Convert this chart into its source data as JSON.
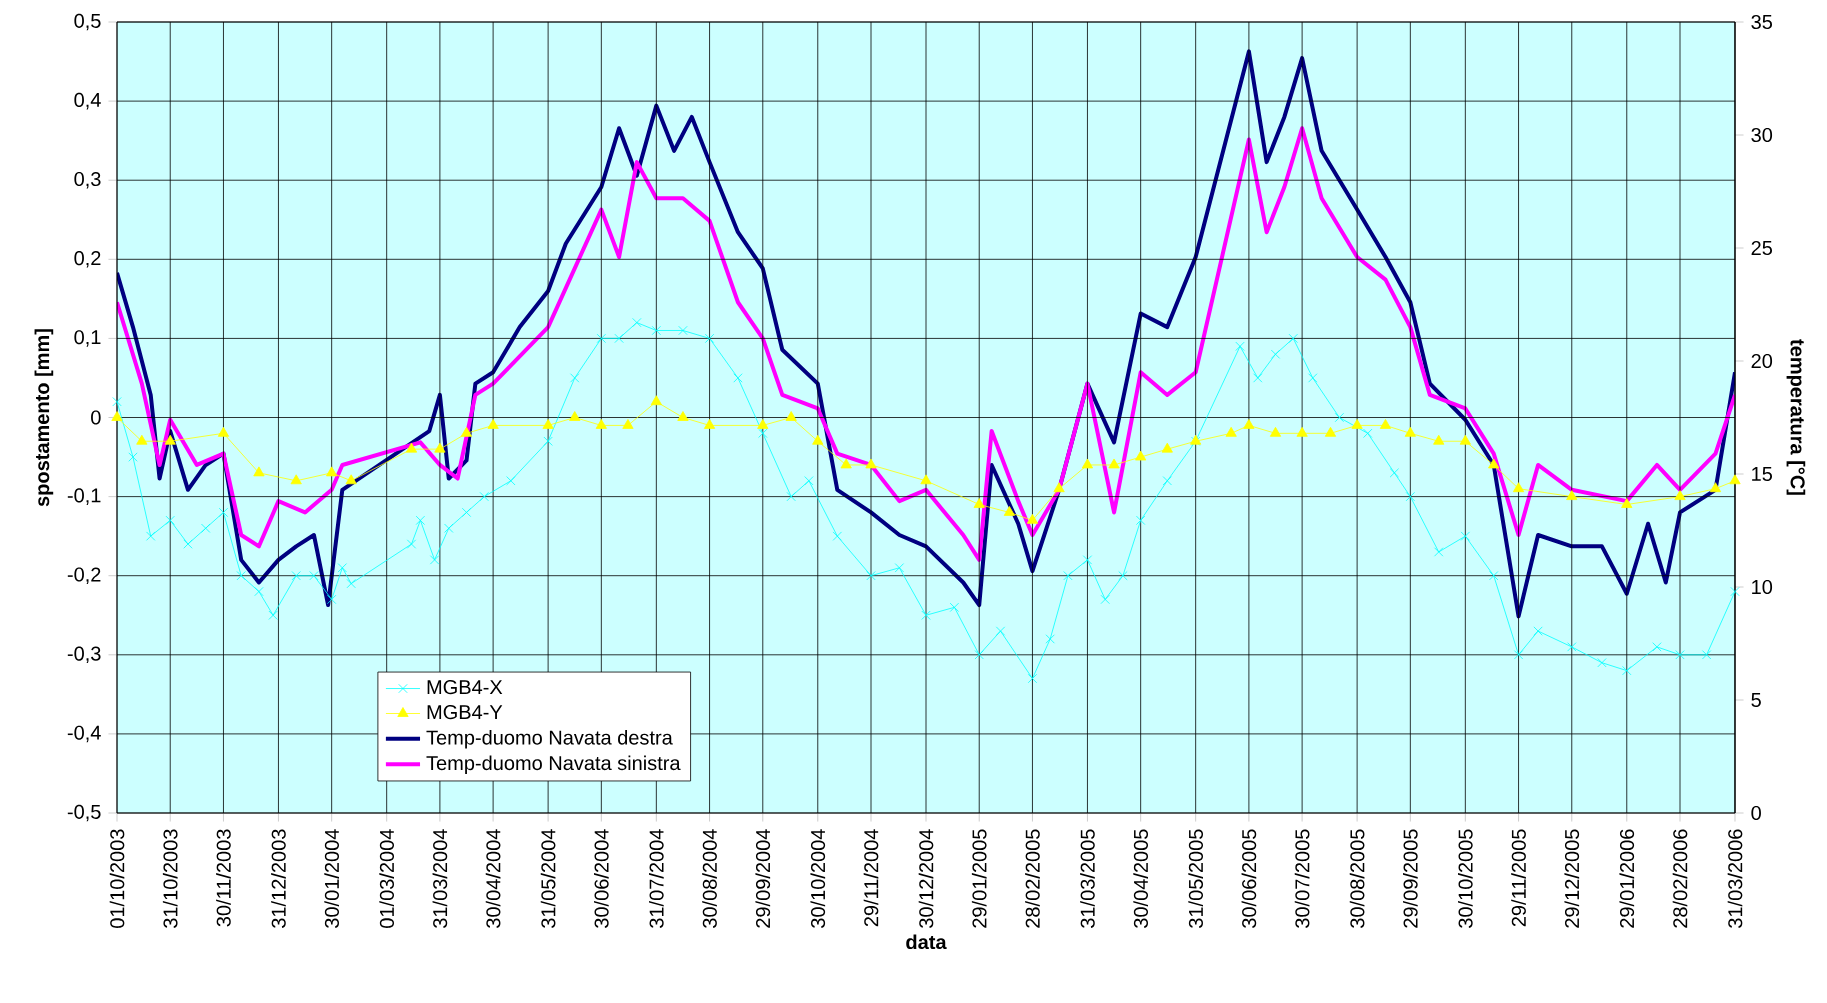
{
  "chart_data": {
    "type": "line",
    "xlabel": "data",
    "ylabel": "spostamento [mm]",
    "y2label": "temperatura [°C]",
    "xlim": [
      "2003-10-01",
      "2006-03-31"
    ],
    "xticks": [
      {
        "value": "2003-10-01",
        "label": "01/10/2003"
      },
      {
        "value": "2003-10-31",
        "label": "31/10/2003"
      },
      {
        "value": "2003-11-30",
        "label": "30/11/2003"
      },
      {
        "value": "2003-12-31",
        "label": "31/12/2003"
      },
      {
        "value": "2004-01-30",
        "label": "30/01/2004"
      },
      {
        "value": "2004-03-01",
        "label": "01/03/2004"
      },
      {
        "value": "2004-03-31",
        "label": "31/03/2004"
      },
      {
        "value": "2004-04-30",
        "label": "30/04/2004"
      },
      {
        "value": "2004-05-31",
        "label": "31/05/2004"
      },
      {
        "value": "2004-06-30",
        "label": "30/06/2004"
      },
      {
        "value": "2004-07-31",
        "label": "31/07/2004"
      },
      {
        "value": "2004-08-30",
        "label": "30/08/2004"
      },
      {
        "value": "2004-09-29",
        "label": "29/09/2004"
      },
      {
        "value": "2004-10-30",
        "label": "30/10/2004"
      },
      {
        "value": "2004-11-29",
        "label": "29/11/2004"
      },
      {
        "value": "2004-12-30",
        "label": "30/12/2004"
      },
      {
        "value": "2005-01-29",
        "label": "29/01/2005"
      },
      {
        "value": "2005-02-28",
        "label": "28/02/2005"
      },
      {
        "value": "2005-03-31",
        "label": "31/03/2005"
      },
      {
        "value": "2005-04-30",
        "label": "30/04/2005"
      },
      {
        "value": "2005-05-31",
        "label": "31/05/2005"
      },
      {
        "value": "2005-06-30",
        "label": "30/06/2005"
      },
      {
        "value": "2005-07-30",
        "label": "30/07/2005"
      },
      {
        "value": "2005-08-30",
        "label": "30/08/2005"
      },
      {
        "value": "2005-09-29",
        "label": "29/09/2005"
      },
      {
        "value": "2005-10-30",
        "label": "30/10/2005"
      },
      {
        "value": "2005-11-29",
        "label": "29/11/2005"
      },
      {
        "value": "2005-12-29",
        "label": "29/12/2005"
      },
      {
        "value": "2006-01-29",
        "label": "29/01/2006"
      },
      {
        "value": "2006-02-28",
        "label": "28/02/2006"
      },
      {
        "value": "2006-03-31",
        "label": "31/03/2006"
      }
    ],
    "ylim": [
      -0.5,
      0.5
    ],
    "yticks": [
      {
        "value": -0.5,
        "label": "-0,5"
      },
      {
        "value": -0.4,
        "label": "-0,4"
      },
      {
        "value": -0.3,
        "label": "-0,3"
      },
      {
        "value": -0.2,
        "label": "-0,2"
      },
      {
        "value": -0.1,
        "label": "-0,1"
      },
      0,
      {
        "value": 0.1,
        "label": "0,1"
      },
      {
        "value": 0.2,
        "label": "0,2"
      },
      {
        "value": 0.3,
        "label": "0,3"
      },
      {
        "value": 0.4,
        "label": "0,4"
      },
      {
        "value": 0.5,
        "label": "0,5"
      }
    ],
    "y2lim": [
      0,
      35
    ],
    "y2ticks": [
      0,
      5,
      10,
      15,
      20,
      25,
      30,
      35
    ],
    "grid": true,
    "legend": "bottom left",
    "series": [
      {
        "name": "MGB4-X",
        "color": "#00ffff",
        "marker": "cross",
        "x": [
          "2003-10-01",
          "2003-10-10",
          "2003-10-20",
          "2003-10-31",
          "2003-11-10",
          "2003-11-20",
          "2003-11-30",
          "2003-12-10",
          "2003-12-20",
          "2003-12-28",
          "2004-01-10",
          "2004-01-20",
          "2004-01-30",
          "2004-02-05",
          "2004-02-10",
          "2004-03-15",
          "2004-03-20",
          "2004-03-28",
          "2004-04-05",
          "2004-04-15",
          "2004-04-25",
          "2004-05-10",
          "2004-05-31",
          "2004-06-15",
          "2004-06-30",
          "2004-07-10",
          "2004-07-20",
          "2004-07-31",
          "2004-08-15",
          "2004-08-30",
          "2004-09-15",
          "2004-09-29",
          "2004-10-15",
          "2004-10-25",
          "2004-11-10",
          "2004-11-29",
          "2004-12-15",
          "2004-12-30",
          "2005-01-15",
          "2005-01-29",
          "2005-02-10",
          "2005-02-28",
          "2005-03-10",
          "2005-03-20",
          "2005-03-31",
          "2005-04-10",
          "2005-04-20",
          "2005-04-30",
          "2005-05-15",
          "2005-05-31",
          "2005-06-25",
          "2005-07-05",
          "2005-07-15",
          "2005-07-25",
          "2005-08-05",
          "2005-08-20",
          "2005-09-05",
          "2005-09-20",
          "2005-09-29",
          "2005-10-15",
          "2005-10-30",
          "2005-11-15",
          "2005-11-29",
          "2005-12-10",
          "2005-12-29",
          "2006-01-15",
          "2006-01-29",
          "2006-02-15",
          "2006-02-28",
          "2006-03-15",
          "2006-03-31"
        ],
        "values": [
          0.02,
          -0.05,
          -0.15,
          -0.13,
          -0.16,
          -0.14,
          -0.12,
          -0.2,
          -0.22,
          -0.25,
          -0.2,
          -0.2,
          -0.23,
          -0.19,
          -0.21,
          -0.16,
          -0.13,
          -0.18,
          -0.14,
          -0.12,
          -0.1,
          -0.08,
          -0.03,
          0.05,
          0.1,
          0.1,
          0.12,
          0.11,
          0.11,
          0.1,
          0.05,
          -0.02,
          -0.1,
          -0.08,
          -0.15,
          -0.2,
          -0.19,
          -0.25,
          -0.24,
          -0.3,
          -0.27,
          -0.33,
          -0.28,
          -0.2,
          -0.18,
          -0.23,
          -0.2,
          -0.13,
          -0.08,
          -0.03,
          0.09,
          0.05,
          0.08,
          0.1,
          0.05,
          0.0,
          -0.02,
          -0.07,
          -0.1,
          -0.17,
          -0.15,
          -0.2,
          -0.3,
          -0.27,
          -0.29,
          -0.31,
          -0.32,
          -0.29,
          -0.3,
          -0.3,
          -0.22
        ]
      },
      {
        "name": "MGB4-Y",
        "color": "#ffff00",
        "marker": "triangle",
        "x": [
          "2003-10-01",
          "2003-10-15",
          "2003-10-31",
          "2003-11-30",
          "2003-12-20",
          "2004-01-10",
          "2004-01-30",
          "2004-02-10",
          "2004-03-15",
          "2004-03-31",
          "2004-04-15",
          "2004-04-30",
          "2004-05-31",
          "2004-06-15",
          "2004-06-30",
          "2004-07-15",
          "2004-07-31",
          "2004-08-15",
          "2004-08-30",
          "2004-09-29",
          "2004-10-15",
          "2004-10-30",
          "2004-11-15",
          "2004-11-29",
          "2004-12-30",
          "2005-01-29",
          "2005-02-15",
          "2005-02-28",
          "2005-03-15",
          "2005-03-31",
          "2005-04-15",
          "2005-04-30",
          "2005-05-15",
          "2005-05-31",
          "2005-06-20",
          "2005-06-30",
          "2005-07-15",
          "2005-07-30",
          "2005-08-15",
          "2005-08-30",
          "2005-09-15",
          "2005-09-29",
          "2005-10-15",
          "2005-10-30",
          "2005-11-15",
          "2005-11-29",
          "2005-12-29",
          "2006-01-29",
          "2006-02-28",
          "2006-03-20",
          "2006-03-31"
        ],
        "values": [
          0.0,
          -0.03,
          -0.03,
          -0.02,
          -0.07,
          -0.08,
          -0.07,
          -0.08,
          -0.04,
          -0.04,
          -0.02,
          -0.01,
          -0.01,
          0.0,
          -0.01,
          -0.01,
          0.02,
          0.0,
          -0.01,
          -0.01,
          0.0,
          -0.03,
          -0.06,
          -0.06,
          -0.08,
          -0.11,
          -0.12,
          -0.13,
          -0.09,
          -0.06,
          -0.06,
          -0.05,
          -0.04,
          -0.03,
          -0.02,
          -0.01,
          -0.02,
          -0.02,
          -0.02,
          -0.01,
          -0.01,
          -0.02,
          -0.03,
          -0.03,
          -0.06,
          -0.09,
          -0.1,
          -0.11,
          -0.1,
          -0.09,
          -0.08
        ]
      },
      {
        "name": "Temp-duomo Navata destra",
        "color": "#000080",
        "axis": "y2",
        "x": [
          "2003-10-01",
          "2003-10-10",
          "2003-10-20",
          "2003-10-25",
          "2003-10-31",
          "2003-11-10",
          "2003-11-20",
          "2003-11-30",
          "2003-12-10",
          "2003-12-20",
          "2003-12-31",
          "2004-01-10",
          "2004-01-20",
          "2004-01-28",
          "2004-02-05",
          "2004-03-25",
          "2004-03-31",
          "2004-04-05",
          "2004-04-15",
          "2004-04-20",
          "2004-04-30",
          "2004-05-15",
          "2004-05-31",
          "2004-06-10",
          "2004-06-30",
          "2004-07-10",
          "2004-07-20",
          "2004-07-31",
          "2004-08-10",
          "2004-08-20",
          "2004-08-30",
          "2004-09-15",
          "2004-09-29",
          "2004-10-10",
          "2004-10-30",
          "2004-11-10",
          "2004-11-29",
          "2004-12-15",
          "2004-12-30",
          "2005-01-20",
          "2005-01-29",
          "2005-02-05",
          "2005-02-20",
          "2005-02-28",
          "2005-03-15",
          "2005-03-31",
          "2005-04-15",
          "2005-04-30",
          "2005-05-15",
          "2005-05-31",
          "2005-06-30",
          "2005-07-10",
          "2005-07-20",
          "2005-07-30",
          "2005-08-10",
          "2005-08-30",
          "2005-09-15",
          "2005-09-29",
          "2005-10-10",
          "2005-10-30",
          "2005-11-15",
          "2005-11-29",
          "2005-12-10",
          "2005-12-29",
          "2006-01-15",
          "2006-01-29",
          "2006-02-10",
          "2006-02-20",
          "2006-02-28",
          "2006-03-20",
          "2006-03-31"
        ],
        "values": [
          23.9,
          21.5,
          18.5,
          14.8,
          16.9,
          14.3,
          15.4,
          15.9,
          11.2,
          10.2,
          11.2,
          11.8,
          12.3,
          9.2,
          14.3,
          16.9,
          18.5,
          14.8,
          15.6,
          19.0,
          19.5,
          21.5,
          23.1,
          25.2,
          27.7,
          30.3,
          28.2,
          31.3,
          29.3,
          30.8,
          28.8,
          25.7,
          24.1,
          20.5,
          19.0,
          14.3,
          13.3,
          12.3,
          11.8,
          10.2,
          9.2,
          15.4,
          12.8,
          10.7,
          14.3,
          19.0,
          16.4,
          22.1,
          21.5,
          24.6,
          33.7,
          28.8,
          30.8,
          33.4,
          29.3,
          26.7,
          24.6,
          22.6,
          19.0,
          17.4,
          15.4,
          8.7,
          12.3,
          11.8,
          11.8,
          9.7,
          12.8,
          10.2,
          13.3,
          14.3,
          19.5
        ]
      },
      {
        "name": "Temp-duomo Navata sinistra",
        "color": "#ff00ff",
        "axis": "y2",
        "x": [
          "2003-10-01",
          "2003-10-15",
          "2003-10-25",
          "2003-10-31",
          "2003-11-15",
          "2003-11-30",
          "2003-12-10",
          "2003-12-20",
          "2003-12-31",
          "2004-01-15",
          "2004-01-30",
          "2004-02-05",
          "2004-03-20",
          "2004-03-31",
          "2004-04-10",
          "2004-04-20",
          "2004-04-30",
          "2004-05-31",
          "2004-06-15",
          "2004-06-30",
          "2004-07-10",
          "2004-07-20",
          "2004-07-31",
          "2004-08-15",
          "2004-08-30",
          "2004-09-15",
          "2004-09-29",
          "2004-10-10",
          "2004-10-30",
          "2004-11-10",
          "2004-11-29",
          "2004-12-15",
          "2004-12-30",
          "2005-01-20",
          "2005-01-29",
          "2005-02-05",
          "2005-02-20",
          "2005-02-28",
          "2005-03-15",
          "2005-03-31",
          "2005-04-15",
          "2005-04-30",
          "2005-05-15",
          "2005-05-31",
          "2005-06-30",
          "2005-07-10",
          "2005-07-20",
          "2005-07-30",
          "2005-08-10",
          "2005-08-30",
          "2005-09-15",
          "2005-09-29",
          "2005-10-10",
          "2005-10-30",
          "2005-11-15",
          "2005-11-29",
          "2005-12-10",
          "2005-12-29",
          "2006-01-29",
          "2006-02-15",
          "2006-02-28",
          "2006-03-20",
          "2006-03-31"
        ],
        "values": [
          22.6,
          19.0,
          15.4,
          17.4,
          15.4,
          15.9,
          12.3,
          11.8,
          13.8,
          13.3,
          14.3,
          15.4,
          16.4,
          15.4,
          14.8,
          18.5,
          19.0,
          21.5,
          24.1,
          26.7,
          24.6,
          28.8,
          27.2,
          27.2,
          26.2,
          22.6,
          21.0,
          18.5,
          17.9,
          15.9,
          15.4,
          13.8,
          14.3,
          12.3,
          11.2,
          16.9,
          13.8,
          12.3,
          14.3,
          19.0,
          13.3,
          19.5,
          18.5,
          19.5,
          29.8,
          25.7,
          27.7,
          30.3,
          27.2,
          24.6,
          23.6,
          21.5,
          18.5,
          17.9,
          15.9,
          12.3,
          15.4,
          14.3,
          13.8,
          15.4,
          14.3,
          15.9,
          18.5
        ]
      }
    ]
  }
}
